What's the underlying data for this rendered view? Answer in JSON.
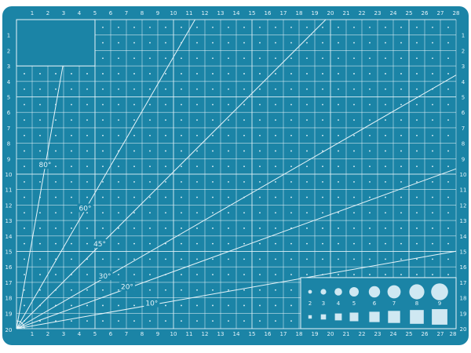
{
  "mat": {
    "color": "#1b84a6",
    "line_color": "#e8f5fa",
    "columns": 28,
    "rows": 20,
    "top_labels": [
      "1",
      "2",
      "3",
      "4",
      "5",
      "6",
      "7",
      "8",
      "9",
      "10",
      "11",
      "12",
      "13",
      "14",
      "15",
      "16",
      "17",
      "18",
      "19",
      "20",
      "21",
      "22",
      "23",
      "24",
      "25",
      "26",
      "27",
      "28"
    ],
    "left_labels": [
      "1",
      "2",
      "3",
      "4",
      "5",
      "6",
      "7",
      "8",
      "9",
      "10",
      "11",
      "12",
      "13",
      "14",
      "15",
      "16",
      "17",
      "18",
      "19",
      "20"
    ],
    "bottom_labels": [
      "1",
      "2",
      "3",
      "4",
      "5",
      "6",
      "7",
      "8",
      "9",
      "10",
      "11",
      "12",
      "13",
      "14",
      "15",
      "16",
      "17",
      "18",
      "19",
      "20",
      "21",
      "22",
      "23",
      "24",
      "25",
      "26",
      "27",
      "28"
    ],
    "right_labels": [
      "1",
      "2",
      "3",
      "4",
      "5",
      "6",
      "7",
      "8",
      "9",
      "10",
      "11",
      "12",
      "13",
      "14",
      "15",
      "16",
      "17",
      "18",
      "19",
      "20"
    ],
    "angles": [
      {
        "degrees": 80,
        "label": "80°"
      },
      {
        "degrees": 60,
        "label": "60°"
      },
      {
        "degrees": 45,
        "label": "45°"
      },
      {
        "degrees": 30,
        "label": "30°"
      },
      {
        "degrees": 20,
        "label": "20°"
      },
      {
        "degrees": 10,
        "label": "10°"
      }
    ],
    "size_gauge_labels": [
      "2",
      "3",
      "4",
      "5",
      "6",
      "7",
      "8",
      "9"
    ]
  }
}
